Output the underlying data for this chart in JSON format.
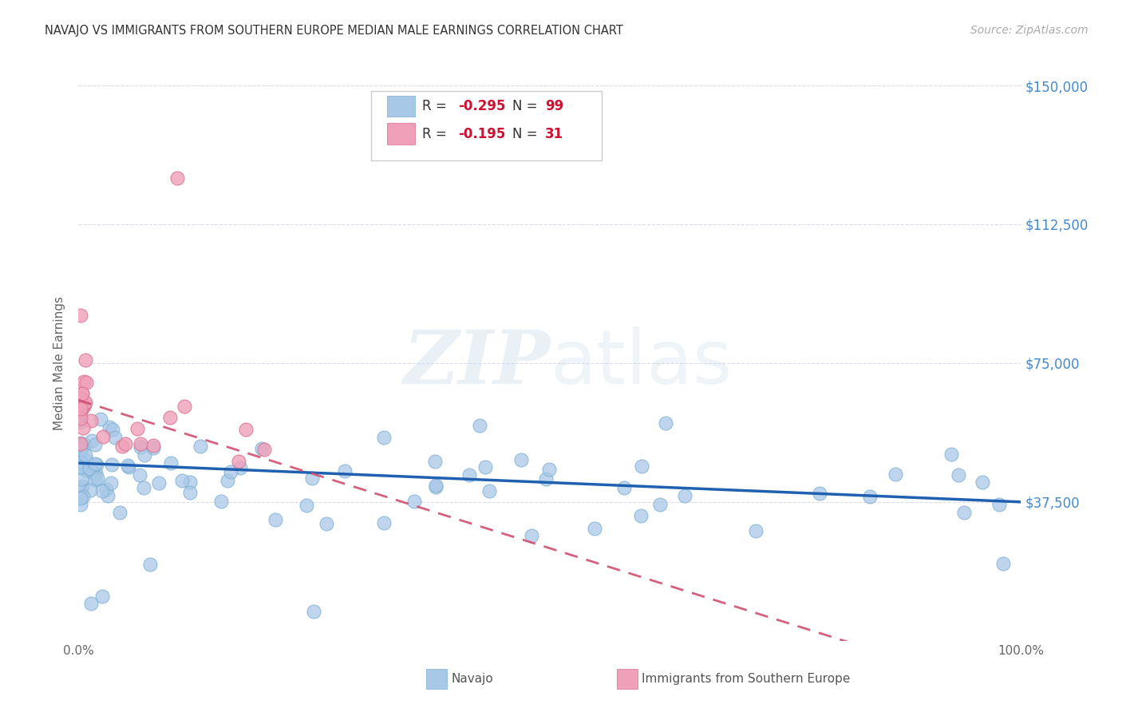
{
  "title": "NAVAJO VS IMMIGRANTS FROM SOUTHERN EUROPE MEDIAN MALE EARNINGS CORRELATION CHART",
  "source": "Source: ZipAtlas.com",
  "ylabel": "Median Male Earnings",
  "watermark_zip": "ZIP",
  "watermark_atlas": "atlas",
  "xlim": [
    0,
    1
  ],
  "ylim": [
    0,
    150000
  ],
  "yticks": [
    0,
    37500,
    75000,
    112500,
    150000
  ],
  "ytick_labels": [
    "",
    "$37,500",
    "$75,000",
    "$112,500",
    "$150,000"
  ],
  "navajo_R": "-0.295",
  "navajo_N": "99",
  "south_europe_R": "-0.195",
  "south_europe_N": "31",
  "navajo_color": "#a8c8e8",
  "south_europe_color": "#f0a0b8",
  "navajo_edge_color": "#7aafd0",
  "south_europe_edge_color": "#d87090",
  "trend_navajo_color": "#2060b0",
  "trend_south_europe_color": "#d05070",
  "background_color": "#ffffff",
  "grid_color": "#d8d8e8",
  "title_color": "#333333",
  "source_color": "#aaaaaa",
  "axis_label_color": "#666666",
  "right_tick_color": "#4488cc",
  "legend_text_color": "#333333",
  "legend_value_color": "#cc1133"
}
